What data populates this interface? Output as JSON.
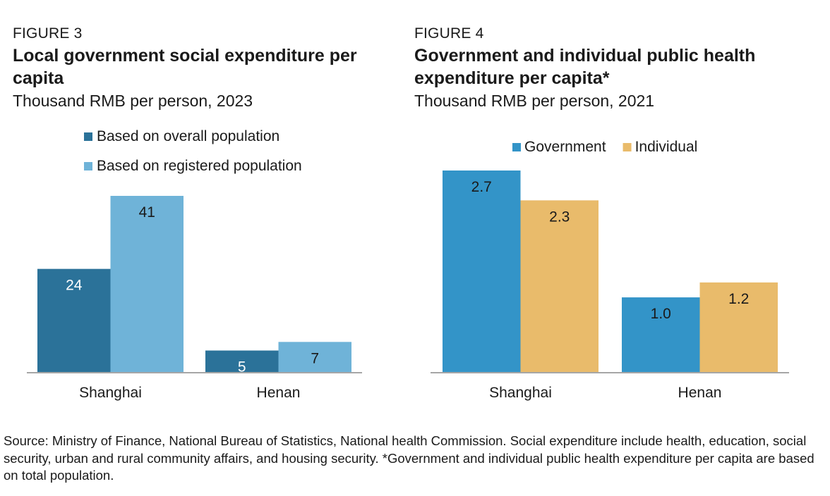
{
  "figure3": {
    "label": "FIGURE 3",
    "title": "Local government social expenditure per capita",
    "subtitle": "Thousand RMB per person, 2023"
  },
  "figure4": {
    "label": "FIGURE 4",
    "title": "Government and individual public health expenditure per capita*",
    "subtitle": "Thousand RMB per person, 2021"
  },
  "source": "Source: Ministry of Finance, National Bureau of Statistics, National health Commission. Social expenditure include health, education, social security, urban and rural community affairs, and housing security. *Government and individual public health expenditure per capita are based on total population.",
  "chart_data": [
    {
      "type": "bar",
      "title": "Local government social expenditure per capita",
      "subtitle": "Thousand RMB per person, 2023",
      "categories": [
        "Shanghai",
        "Henan"
      ],
      "series": [
        {
          "name": "Based on overall population",
          "values": [
            24,
            5
          ],
          "color": "#2b7299",
          "labels": [
            "24",
            "5"
          ],
          "label_color": "#ffffff"
        },
        {
          "name": "Based on registered population",
          "values": [
            41,
            7
          ],
          "color": "#6fb3d8",
          "labels": [
            "41",
            "7"
          ],
          "label_color": "#1a1a1a"
        }
      ],
      "ylim": [
        0,
        41
      ],
      "legend": "top-left, stacked",
      "grid": false
    },
    {
      "type": "bar",
      "title": "Government and individual public health expenditure per capita*",
      "subtitle": "Thousand RMB per person, 2021",
      "categories": [
        "Shanghai",
        "Henan"
      ],
      "series": [
        {
          "name": "Government",
          "values": [
            2.7,
            1.0
          ],
          "color": "#3394c8",
          "labels": [
            "2.7",
            "1.0"
          ],
          "label_color": "#1a1a1a"
        },
        {
          "name": "Individual",
          "values": [
            2.3,
            1.2
          ],
          "color": "#e9bb6b",
          "labels": [
            "2.3",
            "1.2"
          ],
          "label_color": "#1a1a1a"
        }
      ],
      "ylim": [
        0,
        2.7
      ],
      "legend": "top, horizontal",
      "grid": false
    }
  ]
}
